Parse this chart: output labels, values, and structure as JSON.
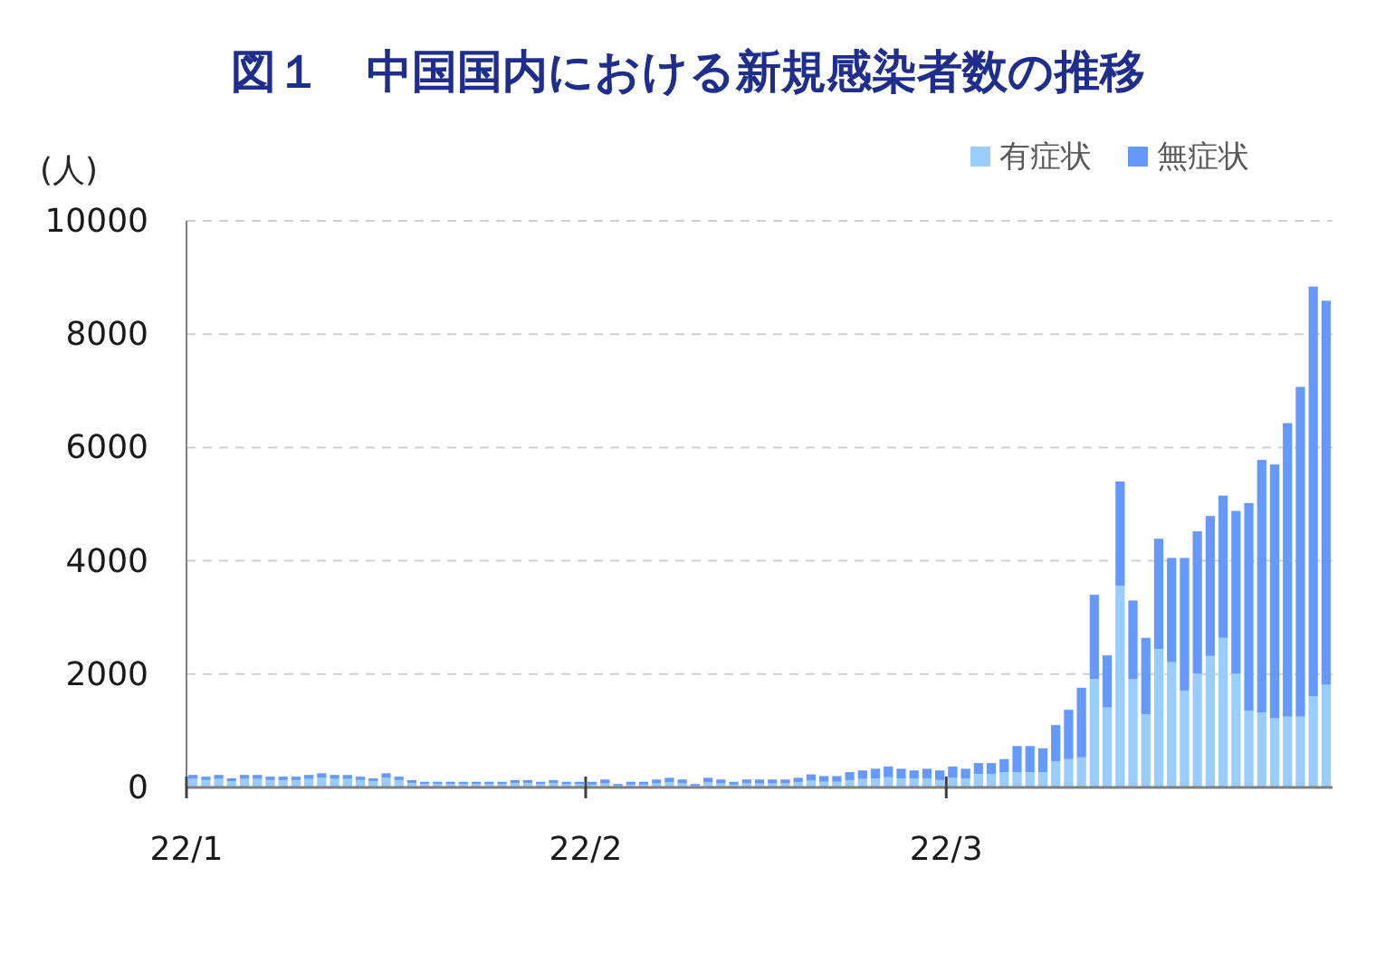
{
  "chart_data": {
    "type": "bar",
    "title": "図１　中国国内における新規感染者数の推移",
    "ylabel": "(人)",
    "stacked": true,
    "grid": "y",
    "legend": "top right",
    "ylim": [
      0,
      10000
    ],
    "yticks": [
      0,
      2000,
      4000,
      6000,
      8000,
      10000
    ],
    "categories": [
      "22/1",
      null,
      null,
      null,
      null,
      null,
      null,
      null,
      null,
      null,
      null,
      null,
      null,
      null,
      null,
      null,
      null,
      null,
      null,
      null,
      null,
      null,
      null,
      null,
      null,
      null,
      null,
      null,
      null,
      null,
      null,
      "22/2",
      null,
      null,
      null,
      null,
      null,
      null,
      null,
      null,
      null,
      null,
      null,
      null,
      null,
      null,
      null,
      null,
      null,
      null,
      null,
      null,
      null,
      null,
      null,
      null,
      null,
      null,
      null,
      "22/3",
      null,
      null,
      null,
      null,
      null,
      null,
      null,
      null,
      null,
      null,
      null,
      null,
      null,
      null,
      null,
      null,
      null,
      null,
      null,
      null,
      null,
      null,
      null,
      null,
      null,
      null,
      null,
      null,
      null
    ],
    "series": [
      {
        "name": "有症状",
        "color": "#99ccff",
        "values": [
          150,
          130,
          150,
          110,
          150,
          150,
          130,
          130,
          130,
          150,
          170,
          150,
          150,
          130,
          110,
          170,
          130,
          80,
          60,
          60,
          60,
          60,
          60,
          60,
          60,
          80,
          80,
          60,
          80,
          60,
          60,
          50,
          70,
          30,
          50,
          50,
          70,
          90,
          70,
          30,
          90,
          70,
          50,
          70,
          70,
          70,
          70,
          90,
          120,
          100,
          100,
          130,
          150,
          160,
          180,
          160,
          160,
          160,
          130,
          170,
          160,
          240,
          240,
          270,
          270,
          270,
          270,
          460,
          500,
          530,
          1910,
          1410,
          3560,
          1910,
          1290,
          2440,
          2210,
          1710,
          2010,
          2320,
          2640,
          2010,
          1350,
          1320,
          1220,
          1250,
          1250,
          1610,
          1810
        ]
      },
      {
        "name": "無症状",
        "color": "#6699ff",
        "values": [
          70,
          60,
          70,
          50,
          70,
          70,
          60,
          60,
          60,
          70,
          80,
          70,
          70,
          60,
          50,
          80,
          60,
          50,
          40,
          40,
          40,
          40,
          40,
          40,
          40,
          50,
          50,
          40,
          50,
          40,
          40,
          50,
          70,
          30,
          50,
          50,
          70,
          80,
          70,
          30,
          80,
          70,
          50,
          70,
          70,
          70,
          70,
          80,
          110,
          100,
          100,
          140,
          150,
          170,
          190,
          170,
          140,
          170,
          170,
          200,
          170,
          190,
          190,
          230,
          460,
          460,
          420,
          640,
          870,
          1230,
          1490,
          920,
          1840,
          1390,
          1350,
          1950,
          1840,
          2340,
          2510,
          2470,
          2510,
          2870,
          3670,
          4460,
          4480,
          5180,
          5820,
          7230,
          6780
        ]
      }
    ]
  }
}
